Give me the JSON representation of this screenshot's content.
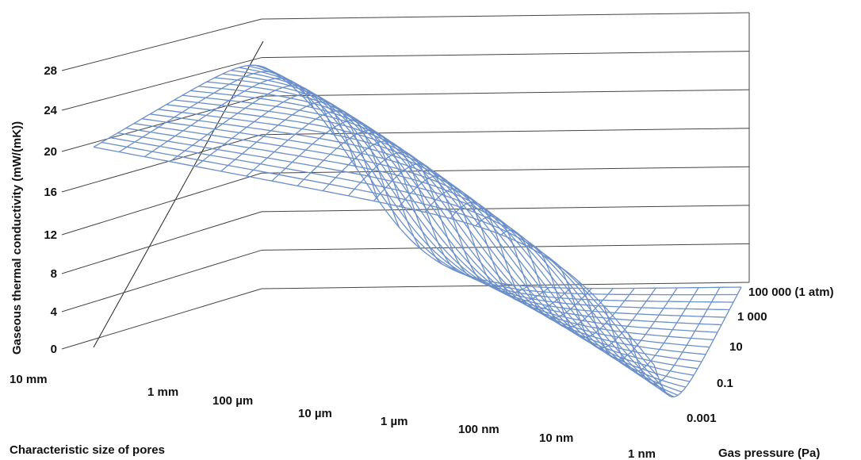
{
  "chart_data": {
    "type": "surface",
    "title": "",
    "zlabel": "Gaseous thermal conductivity (mW/(mK))",
    "xlabel": "Characteristic size of pores",
    "ylabel": "Gas pressure (Pa)",
    "zlim": [
      0,
      28
    ],
    "z_ticks": [
      "0",
      "4",
      "8",
      "12",
      "16",
      "20",
      "24",
      "28"
    ],
    "x_ticks": [
      "10 mm",
      "1 mm",
      "100 µm",
      "10 µm",
      "1 µm",
      "100 nm",
      "10 nm",
      "1 nm"
    ],
    "y_ticks": [
      "0.001",
      "0.1",
      "10",
      "1 000",
      "100 000 (1 atm)"
    ],
    "grid": true,
    "mesh_color": "#6b8fc9",
    "series": [
      {
        "pore_size_m": [
          0.01,
          0.001,
          0.0001,
          1e-05,
          1e-06,
          1e-07,
          1e-08,
          1e-09
        ],
        "pressure_Pa": [
          0.001,
          0.1,
          10,
          1000,
          100000
        ],
        "max_conductivity": 26
      }
    ]
  }
}
